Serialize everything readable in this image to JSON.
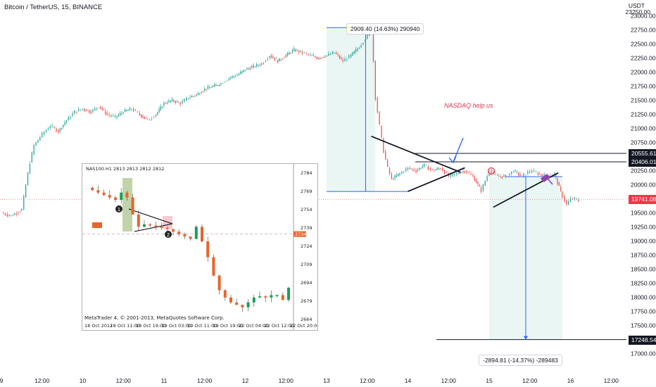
{
  "header": {
    "title": "Bitcoin / TetherUS, 15, BINANCE",
    "unit": "USDT",
    "price_top": "23250.00"
  },
  "chart_data": [
    {
      "type": "line",
      "title": "Bitcoin / TetherUS, 15, BINANCE",
      "y_unit": "USDT",
      "ylim": [
        16900,
        23350
      ],
      "y_ticks": [
        23000,
        22750,
        22500,
        22250,
        22000,
        21750,
        21500,
        21250,
        21000,
        20750,
        20500,
        20250,
        20000,
        19750,
        19500,
        19250,
        19000,
        18750,
        18500,
        18250,
        18000,
        17750,
        17500,
        17250,
        17000
      ],
      "y_tick_labels": [
        "23000.00",
        "22750.00",
        "22500.00",
        "22250.00",
        "22000.00",
        "21750.00",
        "21500.00",
        "21250.00",
        "21000.00",
        "20750.00",
        "20500.00",
        "20250.00",
        "20000.00",
        "19750.00",
        "19500.00",
        "19250.00",
        "19000.00",
        "18750.00",
        "18500.00",
        "18250.00",
        "18000.00",
        "17750.00",
        "17500.00",
        "17250.00",
        "17000.00"
      ],
      "x_tick_labels": [
        "9",
        "12:00",
        "10",
        "12:00",
        "11",
        "12:00",
        "12",
        "12:00",
        "13",
        "12:00",
        "14",
        "12:00",
        "15",
        "12:00",
        "16",
        "12:00"
      ],
      "x_tick_t": [
        0,
        0.5,
        1,
        1.5,
        2,
        2.5,
        3,
        3.5,
        4,
        4.5,
        5,
        5.5,
        6,
        6.5,
        7,
        7.5
      ],
      "series": [
        {
          "t": [
            0,
            0.12,
            0.25,
            0.3,
            0.35,
            0.4,
            0.5,
            0.6,
            0.7,
            0.8,
            0.9,
            1.0,
            1.1,
            1.2,
            1.3,
            1.4,
            1.5,
            1.6,
            1.7,
            1.8,
            1.9,
            2.0,
            2.1,
            2.2,
            2.3,
            2.4,
            2.5,
            2.6,
            2.7,
            2.8,
            2.9,
            3.0,
            3.1,
            3.2,
            3.3,
            3.4,
            3.5,
            3.6,
            3.7,
            3.8,
            3.9,
            4.0,
            4.1,
            4.2,
            4.3,
            4.4,
            4.5,
            4.55,
            4.6,
            4.65,
            4.7,
            4.75,
            4.8,
            4.9,
            5.0,
            5.1,
            5.2,
            5.3,
            5.4,
            5.5,
            5.6,
            5.7,
            5.8,
            5.9,
            6.0,
            6.05,
            6.1,
            6.2,
            6.3,
            6.4,
            6.5,
            6.6,
            6.7,
            6.8,
            6.9,
            6.95,
            7.0,
            7.05,
            7.1
          ],
          "close": [
            19500,
            19450,
            19560,
            20000,
            20400,
            20700,
            20900,
            21050,
            20950,
            21150,
            21300,
            21350,
            21300,
            21400,
            21250,
            21200,
            21300,
            21350,
            21250,
            21150,
            21250,
            21450,
            21500,
            21450,
            21550,
            21600,
            21700,
            21750,
            21800,
            21900,
            21950,
            22050,
            22100,
            22150,
            22300,
            22200,
            22300,
            22400,
            22350,
            22300,
            22250,
            22300,
            22350,
            22200,
            22300,
            22450,
            22650,
            22850,
            21550,
            21050,
            20600,
            20300,
            20100,
            20200,
            20300,
            20250,
            20350,
            20250,
            20300,
            20150,
            20200,
            20250,
            20150,
            19900,
            20250,
            20200,
            20150,
            20150,
            20250,
            20150,
            20250,
            20200,
            20150,
            20200,
            19800,
            19650,
            19750,
            19750,
            19720
          ]
        }
      ],
      "price_labels": [
        {
          "value": 20555.61,
          "text": "20555.61",
          "style": "dark"
        },
        {
          "value": 20406.01,
          "text": "20406.01",
          "style": "dark"
        },
        {
          "value": 19741.08,
          "text": "19741.08",
          "style": "red"
        },
        {
          "value": 17248.54,
          "text": "17248.54",
          "style": "dark"
        }
      ],
      "current_price": 19741.08,
      "annotations": {
        "upper_measure": "2909.40 (14.63%) 290940",
        "lower_measure": "-2894.81 (-14.37%) -289483",
        "note": "NASDAQ help us"
      },
      "upper_measure_range": {
        "t": [
          4.0,
          4.6
        ],
        "y": [
          19880,
          22790
        ]
      },
      "lower_measure_range": {
        "t": [
          6.0,
          6.9
        ],
        "y": [
          17249,
          20144
        ]
      },
      "trendlines": [
        {
          "t": [
            4.55,
            5.65
          ],
          "y": [
            20860,
            20220
          ]
        },
        {
          "t": [
            5.0,
            5.7
          ],
          "y": [
            19880,
            20300
          ]
        },
        {
          "t": [
            6.05,
            6.85
          ],
          "y": [
            19600,
            20210
          ]
        }
      ],
      "grid": false,
      "legend": "none"
    },
    {
      "type": "line",
      "title": "NAS100.H1  2813 2813 2812 2812",
      "x_tick_labels": [
        "18 Oct 2012",
        "18 Oct 11:00",
        "18 Oct 19:00",
        "19 Oct 03:00",
        "19 Oct 11:00",
        "19 Oct 19:00",
        "22 Oct 04:00",
        "22 Oct 12:00",
        "22 Oct 20:00"
      ],
      "y_tick_labels": [
        "2784",
        "2769",
        "2754",
        "2739",
        "2724",
        "2709",
        "2694",
        "2679",
        "2664"
      ],
      "y_ticks": [
        2784,
        2769,
        2754,
        2739,
        2724,
        2709,
        2694,
        2679,
        2664
      ],
      "ylim": [
        2660,
        2788
      ],
      "x": [
        0,
        2,
        4,
        6,
        8,
        10,
        12,
        14,
        16,
        18,
        20,
        22,
        24,
        26,
        28,
        30,
        32,
        34,
        36,
        38,
        40,
        42,
        44,
        46,
        48,
        50,
        52,
        54,
        56,
        58,
        60,
        62,
        64,
        66,
        68,
        70
      ],
      "values": [
        2772,
        2770,
        2768,
        2766,
        2764,
        2762,
        2768,
        2764,
        2750,
        2740,
        2742,
        2741,
        2740,
        2739,
        2738,
        2736,
        2734,
        2732,
        2730,
        2740,
        2728,
        2715,
        2700,
        2688,
        2682,
        2678,
        2676,
        2674,
        2678,
        2682,
        2683,
        2682,
        2684,
        2684,
        2680,
        2690
      ],
      "current_value": "2734",
      "markers": [
        "1",
        "2"
      ],
      "footer": "MetaTrader 4, © 2001-2013, MetaQuotes Software Corp.",
      "grid": false,
      "legend": "none"
    }
  ]
}
